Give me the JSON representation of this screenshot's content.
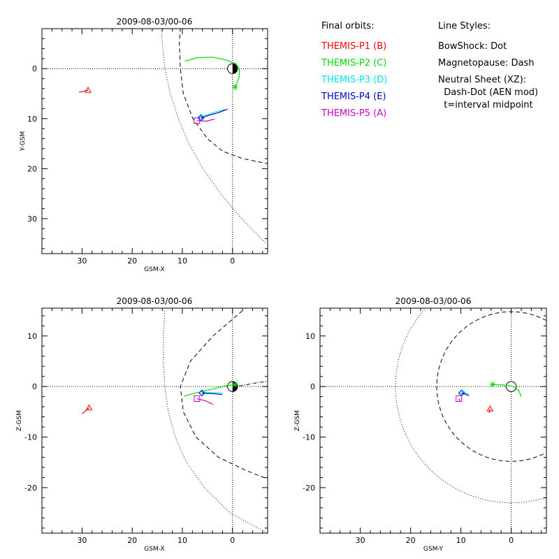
{
  "legend": {
    "orbits_title": "Final orbits:",
    "orbits": [
      {
        "label": "THEMIS-P1 (B)",
        "color": "#ff0000"
      },
      {
        "label": "THEMIS-P2 (C)",
        "color": "#00dd00"
      },
      {
        "label": "THEMIS-P3 (D)",
        "color": "#00e5e5"
      },
      {
        "label": "THEMIS-P4 (E)",
        "color": "#0000cc"
      },
      {
        "label": "THEMIS-P5 (A)",
        "color": "#cc00cc"
      }
    ],
    "styles_title": "Line Styles:",
    "styles": [
      "BowShock: Dot",
      "Magnetopause: Dash",
      "Neutral Sheet (XZ):",
      "  Dash-Dot (AEN mod)",
      "  t=interval midpoint"
    ]
  },
  "chart_data": [
    {
      "id": "xy",
      "type": "line",
      "title": "2009-08-03/00-06",
      "xlabel": "GSM-X",
      "ylabel": "Y-GSM",
      "xlim": [
        38,
        -7
      ],
      "ylim": [
        -8,
        37
      ],
      "y_increases_downward": true,
      "xticks": [
        30,
        20,
        10,
        0
      ],
      "yticks": [
        0,
        10,
        20,
        30
      ],
      "bow_shock": [
        [
          14.4,
          -12
        ],
        [
          14.0,
          -5
        ],
        [
          13.5,
          0
        ],
        [
          12.4,
          5
        ],
        [
          10.8,
          10
        ],
        [
          8.7,
          15
        ],
        [
          5.9,
          20
        ],
        [
          2.4,
          25
        ],
        [
          -1.8,
          30
        ],
        [
          -6.7,
          35
        ]
      ],
      "magnetopause": [
        [
          10.2,
          -11
        ],
        [
          10.6,
          -5
        ],
        [
          10.4,
          0
        ],
        [
          9.8,
          5
        ],
        [
          7.9,
          10
        ],
        [
          5.0,
          14
        ],
        [
          2.0,
          16.5
        ],
        [
          -2.0,
          18.0
        ],
        [
          -7,
          19.0
        ]
      ],
      "orbits": [
        {
          "name": "THEMIS-P1 (B)",
          "color": "#ff0000",
          "marker": "triangle",
          "end": [
            28.8,
            4.3
          ],
          "path": [
            [
              30.6,
              4.7
            ],
            [
              29.6,
              4.5
            ],
            [
              28.8,
              4.3
            ]
          ]
        },
        {
          "name": "THEMIS-P2 (C)",
          "color": "#00dd00",
          "marker": "asterisk",
          "end": [
            -0.5,
            3.7
          ],
          "path": [
            [
              9.5,
              -1.5
            ],
            [
              7.0,
              -2.2
            ],
            [
              4.0,
              -2.3
            ],
            [
              1.5,
              -1.8
            ],
            [
              -0.7,
              -1.0
            ],
            [
              -1.4,
              0.2
            ],
            [
              -1.3,
              1.8
            ],
            [
              -0.8,
              3.0
            ],
            [
              -0.5,
              3.7
            ]
          ]
        },
        {
          "name": "THEMIS-P3 (D)",
          "color": "#00e5e5",
          "marker": "diamond",
          "end": [
            6.3,
            9.7
          ],
          "path": [
            [
              1.5,
              8.2
            ],
            [
              3.2,
              8.6
            ],
            [
              5.0,
              9.2
            ],
            [
              6.3,
              9.7
            ]
          ]
        },
        {
          "name": "THEMIS-P4 (E)",
          "color": "#0000cc",
          "marker": "diamond",
          "end": [
            6.3,
            9.9
          ],
          "path": [
            [
              1.0,
              8.1
            ],
            [
              2.8,
              8.8
            ],
            [
              4.6,
              9.3
            ],
            [
              6.3,
              9.9
            ]
          ]
        },
        {
          "name": "THEMIS-P5 (A)",
          "color": "#cc00cc",
          "marker": "square",
          "end": [
            7.1,
            10.4
          ],
          "path": [
            [
              3.6,
              10.1
            ],
            [
              5.2,
              10.5
            ],
            [
              7.1,
              10.4
            ]
          ]
        }
      ]
    },
    {
      "id": "xz",
      "type": "line",
      "title": "2009-08-03/00-06",
      "xlabel": "GSM-X",
      "ylabel": "Z-GSM",
      "xlim": [
        38,
        -7
      ],
      "ylim": [
        -29,
        15.5
      ],
      "xticks": [
        30,
        20,
        10,
        0
      ],
      "yticks": [
        10,
        0,
        -10,
        -20
      ],
      "bow_shock": [
        [
          13.5,
          15
        ],
        [
          13.8,
          10
        ],
        [
          13.8,
          5
        ],
        [
          13.5,
          0
        ],
        [
          12.8,
          -5
        ],
        [
          11.4,
          -10
        ],
        [
          9.2,
          -15
        ],
        [
          5.6,
          -20
        ],
        [
          0.5,
          -25
        ],
        [
          -7,
          -29
        ]
      ],
      "magnetopause": [
        [
          -2,
          15
        ],
        [
          3.9,
          10
        ],
        [
          8.4,
          5
        ],
        [
          10.4,
          0
        ],
        [
          9.8,
          -5
        ],
        [
          7.3,
          -10
        ],
        [
          2.8,
          -14
        ],
        [
          -2.5,
          -16.5
        ],
        [
          -7,
          -18.3
        ]
      ],
      "neutral_sheet": [
        [
          0,
          0
        ],
        [
          -2,
          0.2
        ],
        [
          -4,
          0.6
        ],
        [
          -6,
          0.9
        ],
        [
          -7,
          1.0
        ]
      ],
      "orbits": [
        {
          "name": "THEMIS-P1 (B)",
          "color": "#ff0000",
          "marker": "triangle",
          "end": [
            28.6,
            -4.2
          ],
          "path": [
            [
              30.0,
              -5.4
            ],
            [
              29.3,
              -4.8
            ],
            [
              28.6,
              -4.2
            ]
          ]
        },
        {
          "name": "THEMIS-P2 (C)",
          "color": "#00dd00",
          "marker": "asterisk",
          "end": [
            -0.5,
            0.4
          ],
          "path": [
            [
              9.7,
              -1.9
            ],
            [
              7.0,
              -1.2
            ],
            [
              4.0,
              -0.5
            ],
            [
              1.5,
              0.1
            ],
            [
              -0.5,
              0.4
            ]
          ]
        },
        {
          "name": "THEMIS-P3 (D)",
          "color": "#00e5e5",
          "marker": "diamond",
          "end": [
            6.1,
            -1.2
          ],
          "path": [
            [
              2.0,
              -1.3
            ],
            [
              4.0,
              -1.2
            ],
            [
              6.1,
              -1.2
            ]
          ]
        },
        {
          "name": "THEMIS-P4 (E)",
          "color": "#0000cc",
          "marker": "diamond",
          "end": [
            6.1,
            -1.3
          ],
          "path": [
            [
              2.0,
              -1.6
            ],
            [
              4.0,
              -1.4
            ],
            [
              6.1,
              -1.3
            ]
          ]
        },
        {
          "name": "THEMIS-P5 (A)",
          "color": "#cc00cc",
          "marker": "square",
          "end": [
            7.1,
            -2.4
          ],
          "path": [
            [
              3.9,
              -3.5
            ],
            [
              5.5,
              -2.8
            ],
            [
              7.1,
              -2.4
            ]
          ]
        }
      ]
    },
    {
      "id": "yz",
      "type": "line",
      "title": "2009-08-03/00-06",
      "xlabel": "GSM-Y",
      "ylabel": "Z-GSM",
      "xlim": [
        38,
        -7
      ],
      "ylim": [
        -29,
        15.5
      ],
      "xticks": [
        30,
        20,
        10,
        0
      ],
      "yticks": [
        10,
        0,
        -10,
        -20
      ],
      "bow_shock_radius": 23,
      "magnetopause_radius": 14.8,
      "orbits": [
        {
          "name": "THEMIS-P1 (B)",
          "color": "#ff0000",
          "marker": "triangle",
          "end": [
            4.2,
            -4.4
          ],
          "path": [
            [
              4.4,
              -5.2
            ],
            [
              4.2,
              -4.4
            ]
          ]
        },
        {
          "name": "THEMIS-P2 (C)",
          "color": "#00dd00",
          "marker": "asterisk",
          "end": [
            3.7,
            0.4
          ],
          "path": [
            [
              -2.0,
              -2.0
            ],
            [
              -1.5,
              -0.8
            ],
            [
              -0.5,
              0.0
            ],
            [
              1.5,
              0.3
            ],
            [
              3.7,
              0.4
            ]
          ]
        },
        {
          "name": "THEMIS-P3 (D)",
          "color": "#00e5e5",
          "marker": "diamond",
          "end": [
            9.7,
            -1.2
          ],
          "path": [
            [
              8.5,
              -1.5
            ],
            [
              9.2,
              -1.3
            ],
            [
              9.7,
              -1.2
            ]
          ]
        },
        {
          "name": "THEMIS-P4 (E)",
          "color": "#0000cc",
          "marker": "diamond",
          "end": [
            9.9,
            -1.3
          ],
          "path": [
            [
              8.4,
              -1.8
            ],
            [
              9.2,
              -1.5
            ],
            [
              9.9,
              -1.3
            ]
          ]
        },
        {
          "name": "THEMIS-P5 (A)",
          "color": "#cc00cc",
          "marker": "square",
          "end": [
            10.4,
            -2.4
          ],
          "path": [
            [
              10.2,
              -2.9
            ],
            [
              10.4,
              -2.4
            ]
          ]
        }
      ]
    }
  ]
}
